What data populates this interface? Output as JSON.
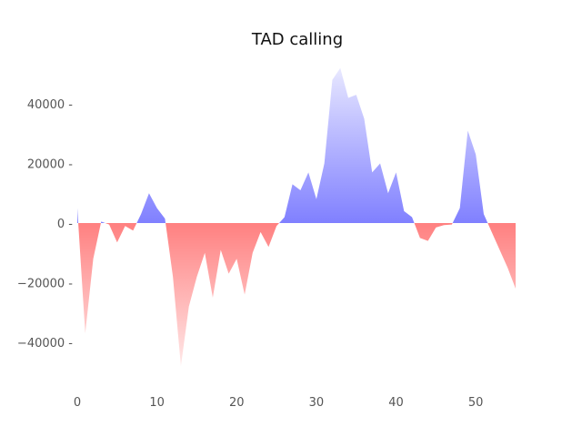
{
  "chart_data": {
    "type": "area",
    "title": "TAD calling",
    "xlabel": "",
    "ylabel": "",
    "xlim": [
      0,
      56
    ],
    "ylim": [
      -55000,
      60000
    ],
    "x_ticks": [
      0,
      10,
      20,
      30,
      40,
      50
    ],
    "x_tick_labels": [
      "0",
      "10",
      "20",
      "30",
      "40",
      "50"
    ],
    "y_ticks": [
      -40000,
      -20000,
      0,
      20000,
      40000
    ],
    "y_tick_labels": [
      "−40000 -",
      "−20000 -",
      "0 -",
      "20000 -",
      "40000 -"
    ],
    "grid": false,
    "colors": {
      "positive": "#8080ff",
      "negative": "#ff8080"
    },
    "series": [
      {
        "x": [
          0,
          1,
          2,
          3,
          4,
          5,
          6,
          7,
          8,
          9,
          10,
          11,
          12,
          13,
          14,
          15,
          16,
          17,
          18,
          19,
          20,
          21,
          22,
          23,
          24,
          25,
          26,
          27,
          28,
          29,
          30,
          31,
          32,
          33,
          34,
          35,
          36,
          37,
          38,
          39,
          40,
          41,
          42,
          43,
          44,
          45,
          46,
          47,
          48,
          49,
          50,
          51,
          52,
          53,
          54,
          55
        ],
        "values": [
          5000,
          -37000,
          -12000,
          500,
          -500,
          -6500,
          -1000,
          -2500,
          3000,
          10000,
          5000,
          1500,
          -18000,
          -48000,
          -28000,
          -18000,
          -10000,
          -25000,
          -9000,
          -17000,
          -12000,
          -24000,
          -10000,
          -3000,
          -8000,
          -1000,
          2000,
          13000,
          11000,
          17000,
          8000,
          20000,
          48000,
          52000,
          42000,
          43000,
          35000,
          17000,
          20000,
          10000,
          17000,
          4000,
          2000,
          -5000,
          -6000,
          -1500,
          -700,
          -500,
          5000,
          31000,
          23000,
          3000,
          -3000,
          -9000,
          -15000,
          -22000
        ]
      }
    ]
  }
}
